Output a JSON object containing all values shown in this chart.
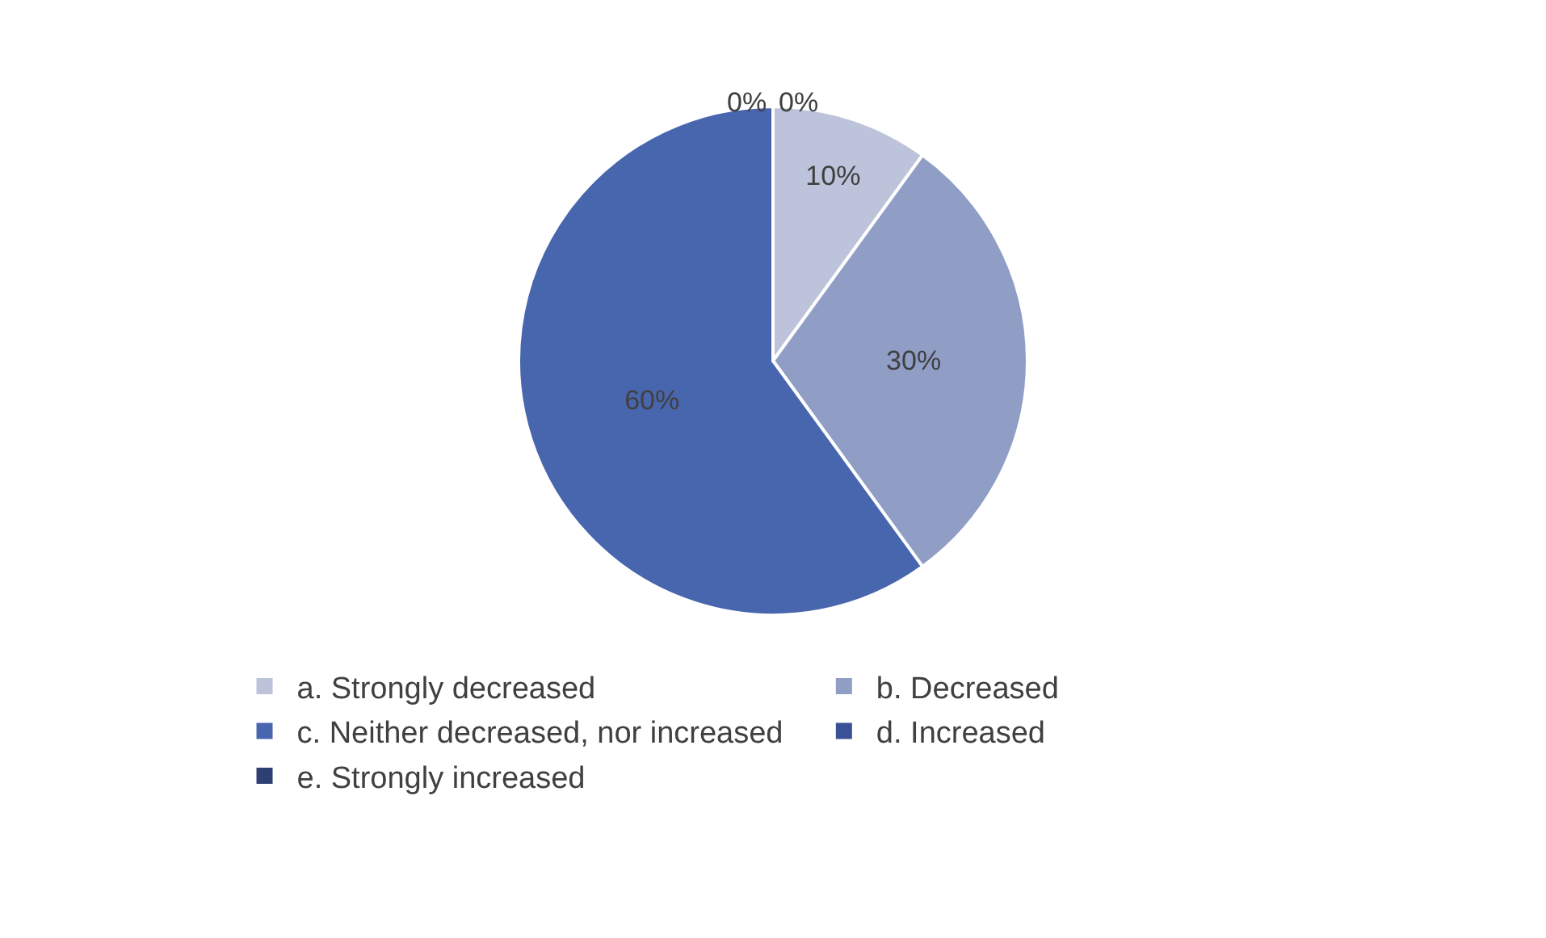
{
  "chart_data": {
    "type": "pie",
    "categories": [
      "a. Strongly decreased",
      "b. Decreased",
      "c. Neither decreased, nor increased",
      "d. Increased",
      "e. Strongly increased"
    ],
    "values": [
      10,
      30,
      60,
      0,
      0
    ],
    "colors": [
      "#bcc3da",
      "#909ec6",
      "#4866ae",
      "#3a5196",
      "#2e3f73"
    ],
    "value_labels": [
      "10%",
      "30%",
      "60%",
      "0%",
      "0%"
    ],
    "legend": "bottom"
  }
}
